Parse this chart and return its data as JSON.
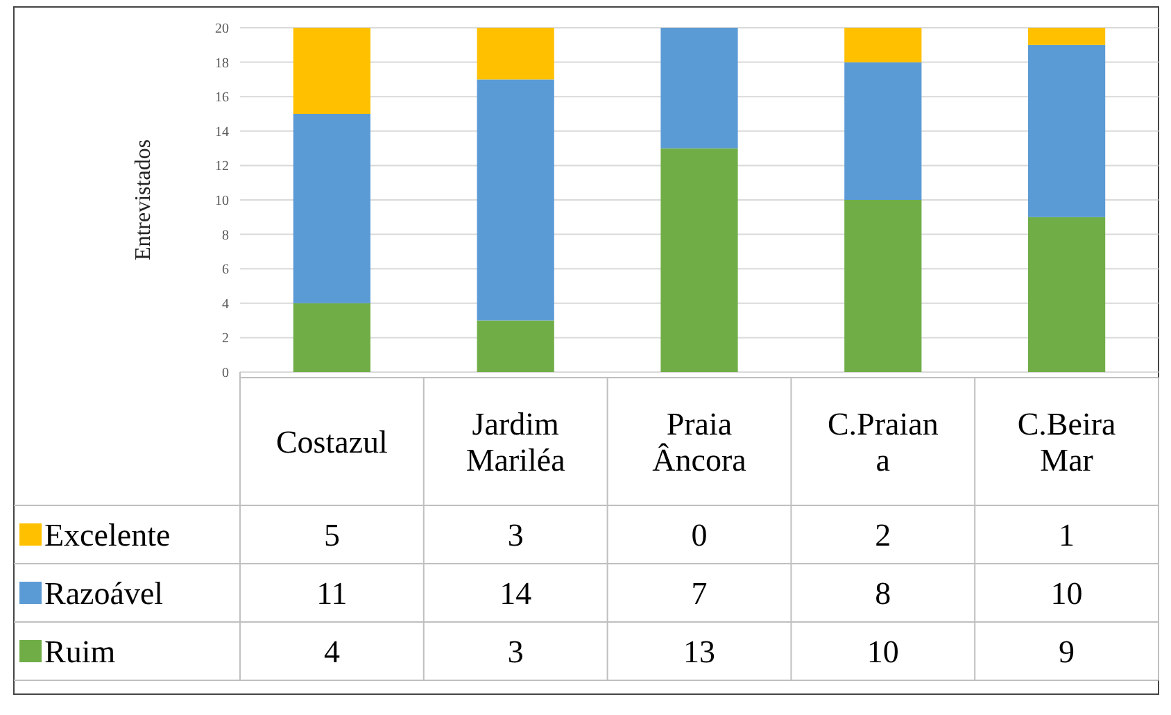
{
  "chart_data": {
    "type": "bar",
    "stacked": true,
    "ylabel": "Entrevistados",
    "categories": [
      "Costazul",
      "Jardim Mariléa",
      "Praia Âncora",
      "C.Praiana",
      "C.Beira Mar"
    ],
    "series": [
      {
        "name": "Ruim",
        "color": "#70ad47",
        "values": [
          4,
          3,
          13,
          10,
          9
        ]
      },
      {
        "name": "Razoável",
        "color": "#5b9bd5",
        "values": [
          11,
          14,
          7,
          8,
          10
        ]
      },
      {
        "name": "Excelente",
        "color": "#ffc000",
        "values": [
          5,
          3,
          0,
          2,
          1
        ]
      }
    ],
    "ylim": [
      0,
      20
    ],
    "yticks": [
      0,
      2,
      4,
      6,
      8,
      10,
      12,
      14,
      16,
      18,
      20
    ],
    "grid": "y",
    "data_labels": true,
    "legend": "bottom left"
  }
}
